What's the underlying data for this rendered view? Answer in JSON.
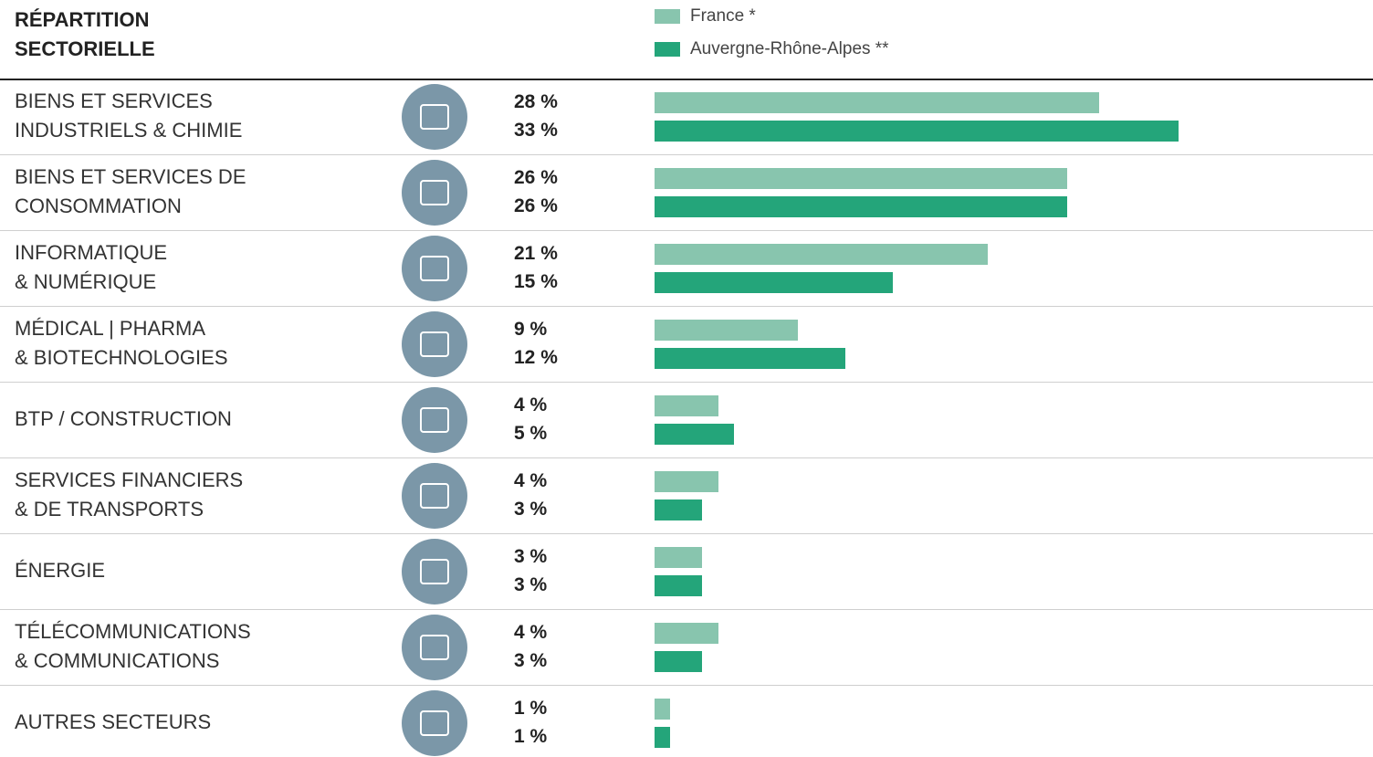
{
  "chart_data": {
    "type": "bar",
    "orientation": "horizontal",
    "title": "RÉPARTITION\nSECTORIELLE",
    "categories": [
      "BIENS ET SERVICES\nINDUSTRIELS & CHIMIE",
      "BIENS ET SERVICES DE\nCONSOMMATION",
      "INFORMATIQUE\n& NUMÉRIQUE",
      "MÉDICAL  |  PHARMA\n&  BIOTECHNOLOGIES",
      "BTP / CONSTRUCTION",
      "SERVICES FINANCIERS\n& DE TRANSPORTS",
      "ÉNERGIE",
      "TÉLÉCOMMUNICATIONS\n& COMMUNICATIONS",
      "AUTRES SECTEURS"
    ],
    "series": [
      {
        "name": "France *",
        "color": "#88c5ae",
        "values": [
          28,
          26,
          21,
          9,
          4,
          4,
          3,
          4,
          1
        ],
        "value_labels": [
          "28 %",
          "26 %",
          "21 %",
          "9 %",
          "4 %",
          "4 %",
          "3 %",
          "4 %",
          "1 %"
        ]
      },
      {
        "name": "Auvergne-Rhône-Alpes **",
        "color": "#24a57a",
        "values": [
          33,
          26,
          15,
          12,
          5,
          3,
          3,
          3,
          1
        ],
        "value_labels": [
          "33 %",
          "26 %",
          "15 %",
          "12 %",
          "5 %",
          "3 %",
          "3 %",
          "3 %",
          "1 %"
        ]
      }
    ]
  }
}
